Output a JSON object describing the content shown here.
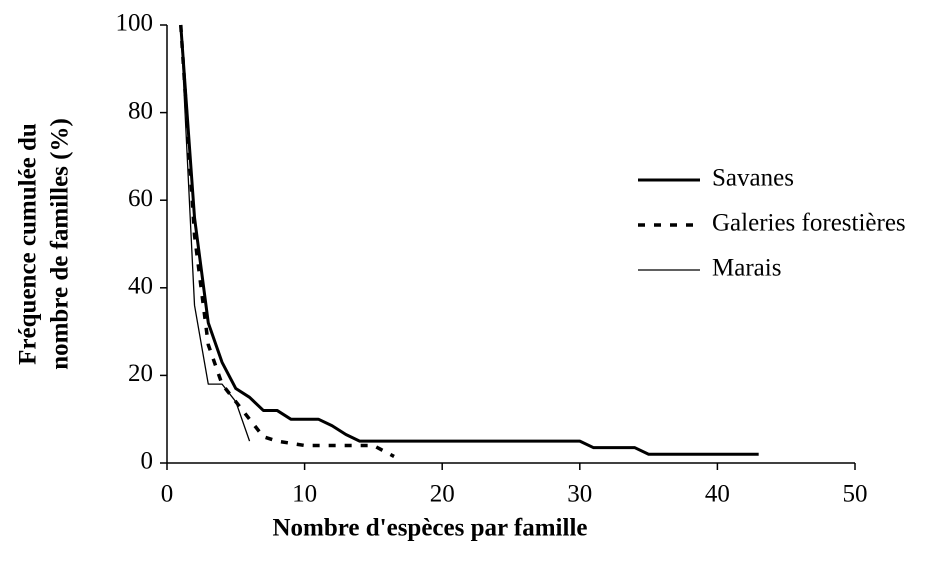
{
  "chart_data": {
    "type": "line",
    "xlabel": "Nombre d'espèces par famille",
    "ylabel": [
      "Fréquence cumulée du",
      "nombre de familles (%)"
    ],
    "xlim": [
      0,
      50
    ],
    "xticks": [
      0,
      10,
      20,
      30,
      40,
      50
    ],
    "ylim": [
      0,
      100
    ],
    "yticks": [
      0,
      20,
      40,
      60,
      80,
      100
    ],
    "grid": false,
    "legend": "right",
    "series": [
      {
        "name": "Savanes",
        "color": "#000000",
        "line_width": 3,
        "dash": "none",
        "x": [
          1,
          2,
          3,
          4,
          5,
          6,
          7,
          8,
          9,
          10,
          11,
          12,
          13,
          14,
          30,
          31,
          34,
          35,
          43
        ],
        "values": [
          100,
          56,
          32,
          23,
          17,
          15,
          12,
          12,
          10,
          10,
          10,
          8.5,
          6.5,
          5,
          5,
          3.5,
          3.5,
          2,
          2
        ]
      },
      {
        "name": "Galeries forestières",
        "color": "#000000",
        "line_width": 3.5,
        "dash": "7 9",
        "x": [
          1,
          2,
          3,
          4,
          5,
          6,
          7,
          8,
          9,
          10,
          15,
          16.5
        ],
        "values": [
          100,
          52,
          27,
          18,
          14,
          10,
          6,
          5,
          4.5,
          4,
          4,
          1.5
        ]
      },
      {
        "name": "Marais",
        "color": "#000000",
        "line_width": 1.3,
        "dash": "none",
        "x": [
          1,
          2,
          3,
          4,
          5,
          6
        ],
        "values": [
          100,
          36,
          18,
          18,
          14,
          5
        ]
      }
    ]
  }
}
